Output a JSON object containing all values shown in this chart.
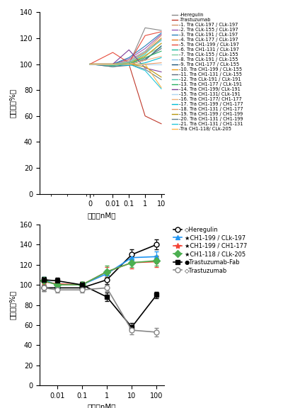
{
  "top_chart": {
    "xlabel": "濃度（nM）",
    "ylabel": "増殖率（%）",
    "ylim": [
      0,
      140
    ],
    "yticks": [
      0,
      20,
      40,
      60,
      80,
      100,
      120,
      140
    ],
    "xvals_labels": [
      "0",
      "0.01",
      "0.1",
      "1",
      "10"
    ],
    "xvals_pos": [
      0,
      0.01,
      0.1,
      1,
      10
    ],
    "series": [
      {
        "label": "-Heregulin",
        "color": "#888888",
        "data": [
          100,
          100,
          100,
          128,
          126
        ]
      },
      {
        "label": "-Trastuzumab",
        "color": "#c0392b",
        "data": [
          100,
          100,
          100,
          60,
          54
        ]
      },
      {
        "label": "-1. Tra CLk-197 / CLk-197",
        "color": "#d4956a",
        "data": [
          100,
          100,
          103,
          110,
          122
        ]
      },
      {
        "label": "-2. Tra CLk-155 / CLk-197",
        "color": "#9b59b6",
        "data": [
          100,
          100,
          104,
          112,
          123
        ]
      },
      {
        "label": "-3. Tra CLk-191 / CLk-197",
        "color": "#2980b9",
        "data": [
          100,
          100,
          105,
          114,
          124
        ]
      },
      {
        "label": "-4. Tra CLk-177 / CLk-197",
        "color": "#e67e22",
        "data": [
          100,
          100,
          102,
          109,
          120
        ]
      },
      {
        "label": "-5. Tra CH1-199 / CLk-197",
        "color": "#e74c3c",
        "data": [
          100,
          109,
          101,
          122,
          125
        ]
      },
      {
        "label": "-6. Tra CH1-131 / CLk-197",
        "color": "#1abc9c",
        "data": [
          100,
          98,
          100,
          106,
          116
        ]
      },
      {
        "label": "-7. Tra CLk-155 / CLk-155",
        "color": "#7dcea0",
        "data": [
          100,
          99,
          101,
          107,
          113
        ]
      },
      {
        "label": "-8. Tra CLk-191 / CLk-155",
        "color": "#85c1e9",
        "data": [
          100,
          100,
          102,
          110,
          118
        ]
      },
      {
        "label": "-9. Tra CH1-177 / CLk-155",
        "color": "#1a5276",
        "data": [
          100,
          100,
          100,
          103,
          114
        ]
      },
      {
        "label": "-10. Tra CH1-199 / CLk-155",
        "color": "#f39c12",
        "data": [
          100,
          100,
          101,
          106,
          116
        ]
      },
      {
        "label": "-11. Tra CH1-131 / CLk-155",
        "color": "#5d6d7e",
        "data": [
          100,
          98,
          99,
          104,
          112
        ]
      },
      {
        "label": "-12. Tra CLk-191 / CLk-191",
        "color": "#48c9b0",
        "data": [
          100,
          100,
          101,
          108,
          119
        ]
      },
      {
        "label": "-13. Tra CH1-177 / CLk-191",
        "color": "#27ae60",
        "data": [
          100,
          99,
          100,
          105,
          110
        ]
      },
      {
        "label": "-14. Tra CH1-199/ CLk-191",
        "color": "#7d3c98",
        "data": [
          100,
          100,
          111,
          97,
          94
        ]
      },
      {
        "label": "-15. Tra CH1-131/ CLk-191",
        "color": "#aed6f1",
        "data": [
          100,
          100,
          100,
          100,
          100
        ]
      },
      {
        "label": "-16. Tra CH1-177/ CH1-177",
        "color": "#f0b27a",
        "data": [
          100,
          100,
          100,
          103,
          106
        ]
      },
      {
        "label": "-17. Tra CH1-199 / CH1-177",
        "color": "#00bcd4",
        "data": [
          100,
          100,
          99,
          101,
          105
        ]
      },
      {
        "label": "-18. Tra CH1-131 / CH1-177",
        "color": "#e59866",
        "data": [
          100,
          100,
          100,
          100,
          101
        ]
      },
      {
        "label": "-19. Tra CH1-199 / CH1-199",
        "color": "#b7950b",
        "data": [
          100,
          100,
          100,
          98,
          90
        ]
      },
      {
        "label": "-20. Tra CH1-131 / CH1-199",
        "color": "#607d8b",
        "data": [
          100,
          100,
          100,
          96,
          88
        ]
      },
      {
        "label": "-21. Tra CH1-131 / CH1-131",
        "color": "#26c6da",
        "data": [
          100,
          100,
          100,
          95,
          81
        ]
      },
      {
        "label": "-Tra CH1-118/ CLk-205",
        "color": "#ffb74d",
        "data": [
          100,
          100,
          100,
          100,
          82
        ]
      }
    ]
  },
  "bottom_chart": {
    "xlabel": "濃度（nM）",
    "ylabel": "増殖率（%）",
    "ylim": [
      0,
      160
    ],
    "yticks": [
      0,
      20,
      40,
      60,
      80,
      100,
      120,
      140,
      160
    ],
    "xvals_pos": [
      0.003,
      0.01,
      0.1,
      1,
      10,
      100
    ],
    "series": [
      {
        "label": "◇Heregulin",
        "color": "#000000",
        "marker": "o",
        "markerfacecolor": "white",
        "markersize": 5,
        "linewidth": 1.2,
        "data": [
          97,
          97,
          97,
          105,
          130,
          140
        ],
        "yerr": [
          3,
          3,
          3,
          4,
          5,
          5
        ]
      },
      {
        "label": "★CH1-199 / CLk-197",
        "color": "#2196f3",
        "marker": "^",
        "markerfacecolor": "#2196f3",
        "markersize": 5,
        "linewidth": 1.2,
        "data": [
          105,
          100,
          100,
          111,
          127,
          128
        ],
        "yerr": [
          3,
          3,
          3,
          4,
          5,
          5
        ]
      },
      {
        "label": "★CH1-199 / CH1-177",
        "color": "#f44336",
        "marker": "*",
        "markerfacecolor": "#f44336",
        "markersize": 6,
        "linewidth": 1.2,
        "data": [
          103,
          101,
          100,
          113,
          122,
          123
        ],
        "yerr": [
          3,
          3,
          3,
          5,
          6,
          5
        ]
      },
      {
        "label": "★CH1-118 / CLk-205",
        "color": "#4caf50",
        "marker": "D",
        "markerfacecolor": "#4caf50",
        "markersize": 5,
        "linewidth": 1.2,
        "data": [
          104,
          100,
          100,
          113,
          122,
          124
        ],
        "yerr": [
          4,
          3,
          3,
          6,
          4,
          5
        ]
      },
      {
        "label": "●Trastuzumab-Fab",
        "color": "#000000",
        "marker": "s",
        "markerfacecolor": "#000000",
        "markersize": 5,
        "linewidth": 1.2,
        "data": [
          105,
          104,
          100,
          88,
          58,
          90
        ],
        "yerr": [
          3,
          3,
          3,
          4,
          4,
          3
        ]
      },
      {
        "label": "◇Trastuzumab",
        "color": "#888888",
        "marker": "o",
        "markerfacecolor": "white",
        "markersize": 5,
        "linewidth": 1.2,
        "data": [
          97,
          95,
          95,
          97,
          55,
          53
        ],
        "yerr": [
          3,
          3,
          3,
          3,
          4,
          4
        ]
      }
    ]
  }
}
